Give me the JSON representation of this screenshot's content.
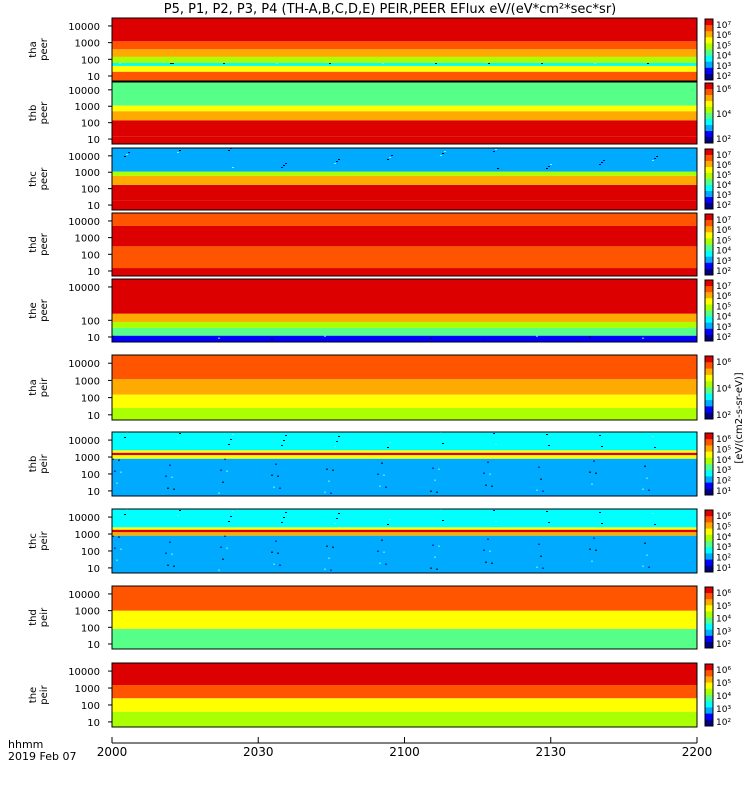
{
  "chart_data": {
    "type": "heatmap",
    "title": "P5, P1, P2, P3, P4 (TH-A,B,C,D,E) PEIR,PEER EFlux eV/(eV*cm²*sec*sr)",
    "xaxis": {
      "caption_lines": [
        "hhmm",
        "2019 Feb 07"
      ],
      "ticks": [
        "2000",
        "2030",
        "2100",
        "2130",
        "2200"
      ]
    },
    "yaxis": {
      "scale": "log",
      "ticks": [
        "10",
        "100",
        "1000",
        "10000"
      ]
    },
    "colorbar": {
      "label": "[eV/(cm2-s-sr-eV)]",
      "scale": "log",
      "colormap": [
        "#000080",
        "#0000ff",
        "#00aaff",
        "#00ffff",
        "#55ff88",
        "#aaff00",
        "#ffff00",
        "#ffaa00",
        "#ff5500",
        "#dd0000"
      ],
      "ticks": [
        "10²",
        "10³",
        "10⁴",
        "10⁵",
        "10⁶",
        "10⁷"
      ]
    },
    "panels": [
      {
        "label_lines": [
          "tha",
          "peer"
        ],
        "colorbar_ticks": [
          "10⁷",
          "10⁶",
          "10⁵",
          "10⁴",
          "10³",
          "10²"
        ],
        "y_ticks": [
          "10000",
          "1000",
          "100",
          "10"
        ],
        "bands": [
          {
            "energy_from": 5,
            "energy_to": 18,
            "level": 8.3
          },
          {
            "energy_from": 18,
            "energy_to": 40,
            "level": 5.8
          },
          {
            "energy_from": 40,
            "energy_to": 60,
            "level": 3.2
          },
          {
            "energy_from": 60,
            "energy_to": 140,
            "level": 5.4
          },
          {
            "energy_from": 140,
            "energy_to": 400,
            "level": 7.2
          },
          {
            "energy_from": 400,
            "energy_to": 1200,
            "level": 8.1
          },
          {
            "energy_from": 1200,
            "energy_to": 30000,
            "level": 8.6
          }
        ]
      },
      {
        "label_lines": [
          "thb",
          "peer"
        ],
        "colorbar_ticks": [
          "10⁶",
          "10⁴",
          "10²"
        ],
        "y_ticks": [
          "10000",
          "1000",
          "100",
          "10"
        ],
        "bands": [
          {
            "energy_from": 5,
            "energy_to": 14,
            "level": 8.7
          },
          {
            "energy_from": 14,
            "energy_to": 140,
            "level": 9.2
          },
          {
            "energy_from": 140,
            "energy_to": 500,
            "level": 7.4
          },
          {
            "energy_from": 500,
            "energy_to": 1100,
            "level": 6.2
          },
          {
            "energy_from": 1100,
            "energy_to": 30000,
            "level": 3.6
          }
        ]
      },
      {
        "label_lines": [
          "thc",
          "peer"
        ],
        "colorbar_ticks": [
          "10⁷",
          "10⁶",
          "10⁵",
          "10⁴",
          "10³",
          "10²"
        ],
        "y_ticks": [
          "10000",
          "1000",
          "100",
          "10"
        ],
        "bands": [
          {
            "energy_from": 5,
            "energy_to": 20,
            "level": 8.9
          },
          {
            "energy_from": 20,
            "energy_to": 170,
            "level": 9.4
          },
          {
            "energy_from": 170,
            "energy_to": 600,
            "level": 7.0
          },
          {
            "energy_from": 600,
            "energy_to": 1100,
            "level": 4.5
          },
          {
            "energy_from": 1100,
            "energy_to": 30000,
            "level": 1.6
          }
        ]
      },
      {
        "label_lines": [
          "thd",
          "peer"
        ],
        "colorbar_ticks": [
          "10⁷",
          "10⁶",
          "10⁵",
          "10⁴",
          "10³",
          "10²"
        ],
        "y_ticks": [
          "10000",
          "1000",
          "100",
          "10"
        ],
        "bands": [
          {
            "energy_from": 5,
            "energy_to": 15,
            "level": 8.6
          },
          {
            "energy_from": 15,
            "energy_to": 300,
            "level": 8.0
          },
          {
            "energy_from": 300,
            "energy_to": 5000,
            "level": 8.8
          },
          {
            "energy_from": 5000,
            "energy_to": 30000,
            "level": 8.3
          }
        ]
      },
      {
        "label_lines": [
          "the",
          "peer"
        ],
        "colorbar_ticks": [
          "10⁷",
          "10⁶",
          "10⁵",
          "10⁴",
          "10³",
          "10²"
        ],
        "y_ticks": [
          "10000",
          "100",
          "10"
        ],
        "bands": [
          {
            "energy_from": 5,
            "energy_to": 12,
            "level": 1.0
          },
          {
            "energy_from": 12,
            "energy_to": 35,
            "level": 3.8
          },
          {
            "energy_from": 35,
            "energy_to": 80,
            "level": 5.2
          },
          {
            "energy_from": 80,
            "energy_to": 250,
            "level": 7.4
          },
          {
            "energy_from": 250,
            "energy_to": 30000,
            "level": 8.7
          }
        ]
      },
      {
        "label_lines": [
          "tha",
          "peir"
        ],
        "colorbar_ticks": [
          "10⁶",
          "10⁴",
          "10²"
        ],
        "y_ticks": [
          "10000",
          "1000",
          "100",
          "10"
        ],
        "bands": [
          {
            "energy_from": 5,
            "energy_to": 25,
            "level": 5.3
          },
          {
            "energy_from": 25,
            "energy_to": 150,
            "level": 6.2
          },
          {
            "energy_from": 150,
            "energy_to": 1200,
            "level": 7.1
          },
          {
            "energy_from": 1200,
            "energy_to": 30000,
            "level": 7.8
          }
        ]
      },
      {
        "label_lines": [
          "thb",
          "peir"
        ],
        "colorbar_ticks": [
          "10⁶",
          "10⁵",
          "10⁴",
          "10³",
          "10²",
          "10¹"
        ],
        "y_ticks": [
          "10000",
          "1000",
          "100",
          "10"
        ],
        "bands": [
          {
            "energy_from": 5,
            "energy_to": 800,
            "level": 2.3
          },
          {
            "energy_from": 800,
            "energy_to": 1300,
            "level": 6.4
          },
          {
            "energy_from": 1300,
            "energy_to": 1800,
            "level": 9.0
          },
          {
            "energy_from": 1800,
            "energy_to": 2500,
            "level": 5.8
          },
          {
            "energy_from": 2500,
            "energy_to": 30000,
            "level": 2.8
          }
        ]
      },
      {
        "label_lines": [
          "thc",
          "peir"
        ],
        "colorbar_ticks": [
          "10⁶",
          "10⁵",
          "10⁴",
          "10³",
          "10²",
          "10¹"
        ],
        "y_ticks": [
          "10000",
          "1000",
          "100",
          "10"
        ],
        "bands": [
          {
            "energy_from": 5,
            "energy_to": 800,
            "level": 2.4
          },
          {
            "energy_from": 800,
            "energy_to": 1300,
            "level": 6.6
          },
          {
            "energy_from": 1300,
            "energy_to": 1800,
            "level": 8.9
          },
          {
            "energy_from": 1800,
            "energy_to": 2500,
            "level": 5.5
          },
          {
            "energy_from": 2500,
            "energy_to": 30000,
            "level": 2.6
          }
        ]
      },
      {
        "label_lines": [
          "thd",
          "peir"
        ],
        "colorbar_ticks": [
          "10⁶",
          "10⁵",
          "10⁴",
          "10³",
          "10²"
        ],
        "y_ticks": [
          "10000",
          "1000",
          "100",
          "10"
        ],
        "bands": [
          {
            "energy_from": 5,
            "energy_to": 80,
            "level": 4.3
          },
          {
            "energy_from": 80,
            "energy_to": 1000,
            "level": 6.4
          },
          {
            "energy_from": 1000,
            "energy_to": 30000,
            "level": 8.2
          }
        ]
      },
      {
        "label_lines": [
          "the",
          "peir"
        ],
        "colorbar_ticks": [
          "10⁶",
          "10⁵",
          "10⁴",
          "10³",
          "10²"
        ],
        "y_ticks": [
          "10000",
          "1000",
          "100",
          "10"
        ],
        "bands": [
          {
            "energy_from": 5,
            "energy_to": 40,
            "level": 4.5
          },
          {
            "energy_from": 40,
            "energy_to": 250,
            "level": 6.0
          },
          {
            "energy_from": 250,
            "energy_to": 1500,
            "level": 7.5
          },
          {
            "energy_from": 1500,
            "energy_to": 30000,
            "level": 8.8
          }
        ]
      }
    ]
  }
}
